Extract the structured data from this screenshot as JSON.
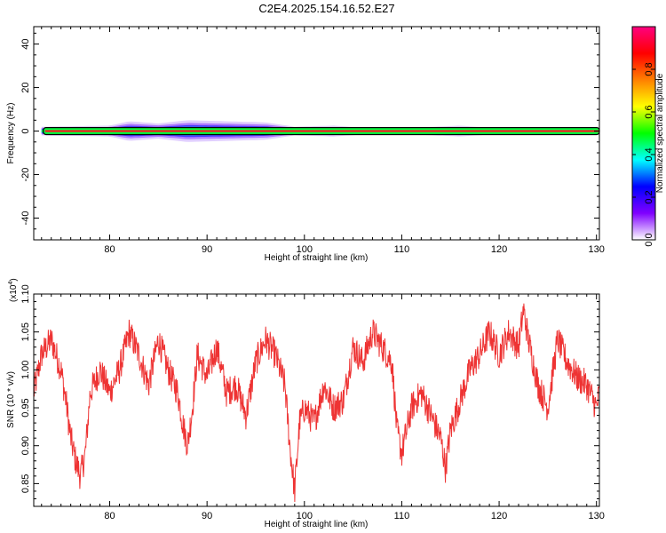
{
  "title": "C2E4.2025.154.16.52.E27",
  "colors": {
    "snr_line": "#ee3333",
    "axis": "#000000",
    "colormap": [
      "#ffffff",
      "#8000ff",
      "#0000ff",
      "#00ffff",
      "#00ff00",
      "#ffff00",
      "#ff8000",
      "#ff0000",
      "#ff0080"
    ]
  },
  "chart_data": [
    {
      "type": "heatmap",
      "xlabel": "Height of straight line (km)",
      "ylabel": "Frequency (Hz)",
      "xlim": [
        72.2,
        130.3
      ],
      "ylim": [
        -50,
        48
      ],
      "x_ticks": [
        80,
        90,
        100,
        110,
        120,
        130
      ],
      "y_ticks": [
        -40,
        -20,
        0,
        20,
        40
      ],
      "band_center_hz": 0,
      "band_profile": [
        {
          "x": 73,
          "spread_hz": 2.0
        },
        {
          "x": 80,
          "spread_hz": 2.5
        },
        {
          "x": 82,
          "spread_hz": 4.5
        },
        {
          "x": 85,
          "spread_hz": 3.5
        },
        {
          "x": 88,
          "spread_hz": 5.0
        },
        {
          "x": 92,
          "spread_hz": 4.5
        },
        {
          "x": 96,
          "spread_hz": 4.0
        },
        {
          "x": 99,
          "spread_hz": 2.0
        },
        {
          "x": 103,
          "spread_hz": 2.5
        },
        {
          "x": 108,
          "spread_hz": 1.0
        },
        {
          "x": 116,
          "spread_hz": 2.5
        },
        {
          "x": 121,
          "spread_hz": 1.0
        },
        {
          "x": 130.3,
          "spread_hz": 1.0
        }
      ],
      "colorbar": {
        "label": "Normalized spectral amplitude",
        "range": [
          0,
          1
        ],
        "ticks": [
          0.0,
          0.2,
          0.4,
          0.6,
          0.8
        ]
      }
    },
    {
      "type": "line",
      "xlabel": "Height of straight line (km)",
      "ylabel": "SNR (10 * v/v)",
      "exponent_label": "(x10",
      "exponent_power": "4",
      "exponent_close": ")",
      "xlim": [
        72.2,
        130.3
      ],
      "ylim": [
        0.82,
        1.1
      ],
      "x_ticks": [
        80,
        90,
        100,
        110,
        120,
        130
      ],
      "y_ticks": [
        "0.85",
        "0.90",
        "0.95",
        "1.00",
        "1.05",
        "1.10"
      ],
      "series": [
        {
          "x": [
            72.2,
            73.0,
            74.0,
            75.0,
            75.5,
            76.0,
            76.5,
            77.0,
            77.5,
            78.0,
            79.0,
            80.0,
            81.0,
            82.0,
            83.0,
            84.0,
            85.0,
            86.0,
            87.0,
            87.5,
            88.0,
            88.5,
            89.0,
            90.0,
            91.0,
            92.0,
            93.0,
            94.0,
            95.0,
            96.0,
            97.0,
            98.0,
            98.5,
            99.0,
            99.5,
            100.0,
            101.0,
            102.0,
            103.0,
            104.0,
            105.0,
            106.0,
            107.0,
            108.0,
            109.0,
            109.5,
            110.0,
            111.0,
            112.0,
            113.0,
            114.0,
            114.5,
            115.0,
            116.0,
            117.0,
            118.0,
            119.0,
            120.0,
            121.0,
            122.0,
            122.5,
            123.0,
            124.0,
            125.0,
            126.0,
            127.0,
            128.0,
            129.0,
            130.0,
            130.3
          ],
          "values": [
            0.97,
            1.02,
            1.04,
            1.0,
            0.96,
            0.91,
            0.88,
            0.86,
            0.89,
            0.97,
            1.0,
            0.97,
            1.0,
            1.05,
            1.02,
            0.98,
            1.04,
            1.0,
            0.97,
            0.93,
            0.9,
            0.95,
            1.02,
            0.99,
            1.03,
            0.97,
            0.98,
            0.94,
            1.01,
            1.04,
            1.02,
            0.98,
            0.9,
            0.84,
            0.93,
            0.95,
            0.93,
            0.98,
            0.95,
            0.96,
            1.03,
            1.01,
            1.05,
            1.03,
            1.01,
            0.92,
            0.89,
            0.95,
            0.97,
            0.94,
            0.91,
            0.87,
            0.92,
            0.96,
            1.0,
            1.02,
            1.05,
            1.02,
            1.05,
            1.03,
            1.08,
            1.04,
            0.98,
            0.95,
            1.04,
            1.01,
            0.99,
            0.98,
            0.95,
            0.97
          ]
        }
      ]
    }
  ]
}
